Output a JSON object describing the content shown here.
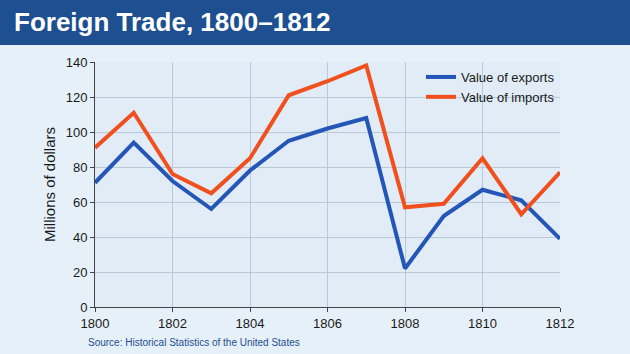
{
  "chart_data": {
    "type": "line",
    "title": "Foreign Trade, 1800–1812",
    "ylabel": "Millions of dollars",
    "x": [
      1800,
      1801,
      1802,
      1803,
      1804,
      1805,
      1806,
      1807,
      1808,
      1809,
      1810,
      1811,
      1812
    ],
    "series": [
      {
        "name": "Value of exports",
        "color": "#2456b8",
        "values": [
          71,
          94,
          72,
          56,
          78,
          95,
          102,
          108,
          22,
          52,
          67,
          61,
          39
        ]
      },
      {
        "name": "Value of imports",
        "color": "#f0501e",
        "values": [
          91,
          111,
          76,
          65,
          85,
          121,
          129,
          138,
          57,
          59,
          85,
          53,
          77
        ]
      }
    ],
    "xlim": [
      1800,
      1812
    ],
    "xticks": [
      1800,
      1802,
      1804,
      1806,
      1808,
      1810,
      1812
    ],
    "ylim": [
      0,
      140
    ],
    "yticks": [
      0,
      20,
      40,
      60,
      80,
      100,
      120,
      140
    ],
    "grid": true,
    "legend": "upper right",
    "annotations": [
      "Source: Historical Statistics of the United States"
    ]
  }
}
